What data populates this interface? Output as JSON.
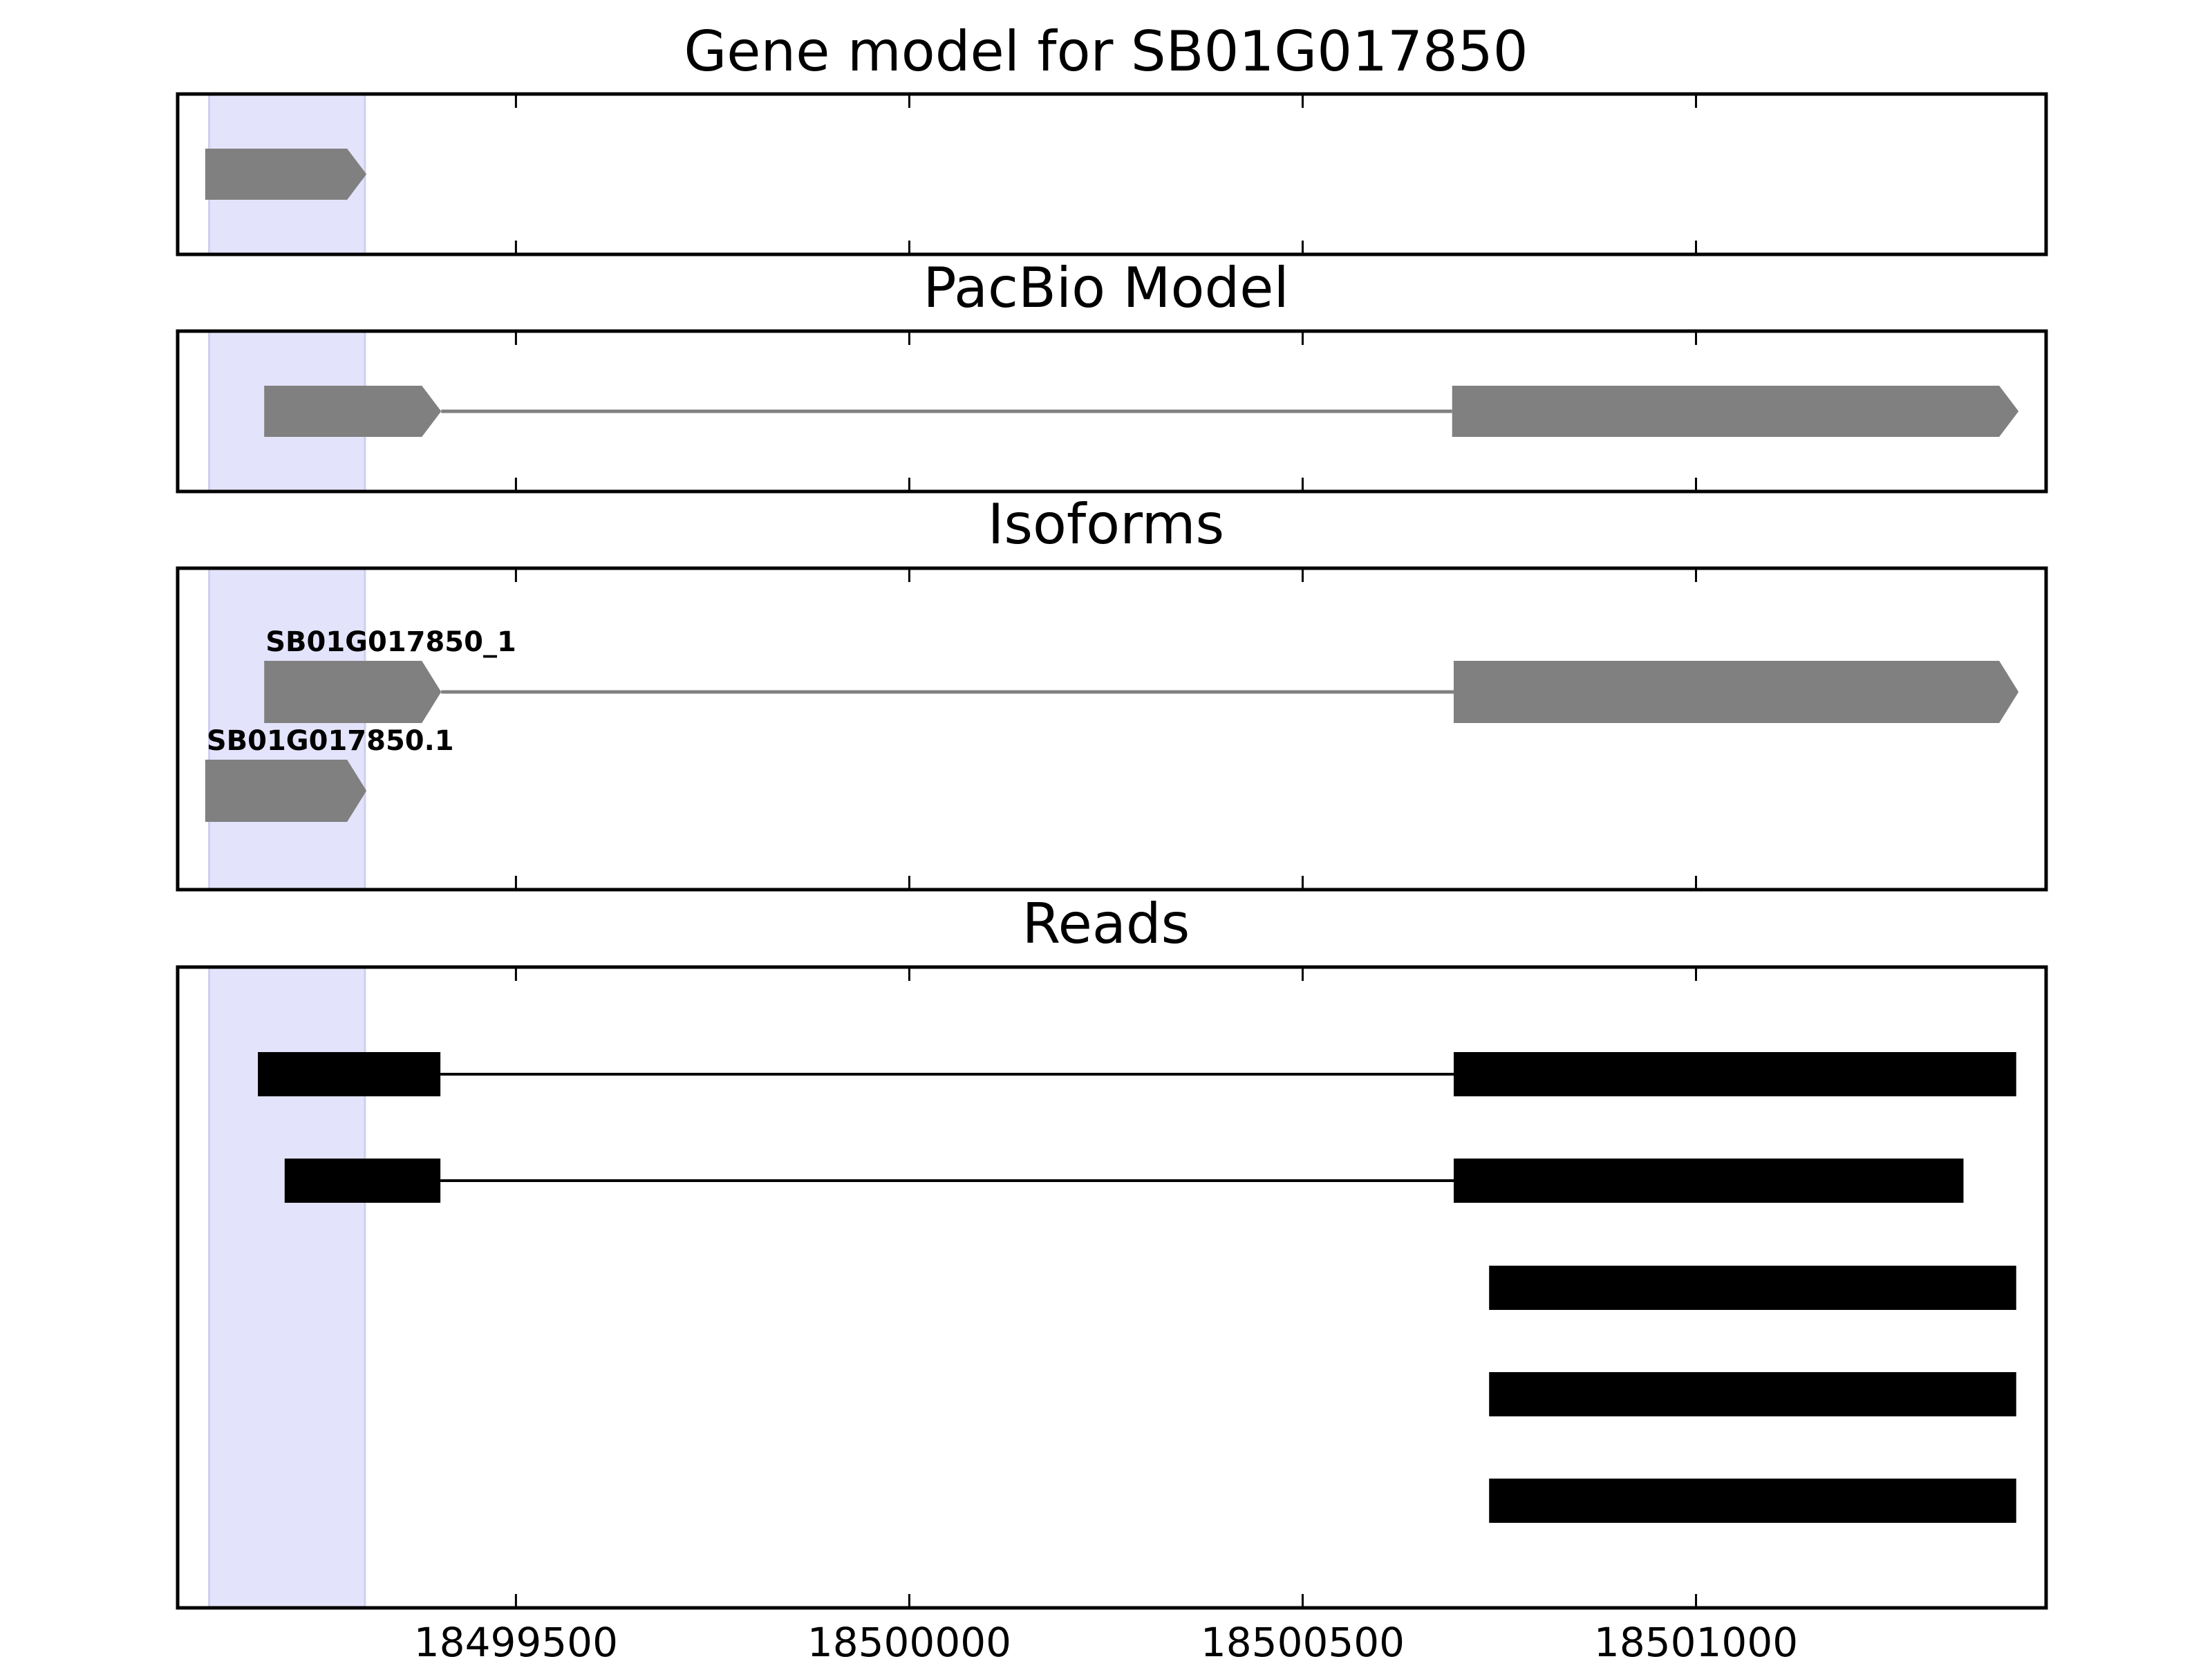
{
  "chart_data": {
    "type": "gene-track",
    "title": "Gene model for SB01G017850",
    "xlim": [
      18499070,
      18501445
    ],
    "x_ticks": [
      18499500,
      18500000,
      18500500,
      18501000
    ],
    "highlight_region": [
      18499110,
      18499308
    ],
    "colors": {
      "gene_feature": "#808080",
      "read": "#000000",
      "highlight": "#e3e3fb"
    },
    "panels": [
      {
        "title": "Gene model for SB01G017850",
        "models": [
          {
            "label": "",
            "row": 0,
            "exons": [
              [
                18499105,
                18499310
              ]
            ]
          }
        ]
      },
      {
        "title": "PacBio Model",
        "models": [
          {
            "label": "",
            "row": 0,
            "exons": [
              [
                18499180,
                18499405
              ],
              [
                18500690,
                18501410
              ]
            ]
          }
        ]
      },
      {
        "title": "Isoforms",
        "models": [
          {
            "label": "SB01G017850_1",
            "row": 0,
            "exons": [
              [
                18499180,
                18499405
              ],
              [
                18500692,
                18501410
              ]
            ]
          },
          {
            "label": "SB01G017850.1",
            "row": 1,
            "exons": [
              [
                18499105,
                18499310
              ]
            ]
          }
        ]
      },
      {
        "title": "Reads",
        "reads": [
          {
            "row": 0,
            "blocks": [
              [
                18499172,
                18499404
              ],
              [
                18500692,
                18501407
              ]
            ]
          },
          {
            "row": 1,
            "blocks": [
              [
                18499206,
                18499404
              ],
              [
                18500692,
                18501340
              ]
            ]
          },
          {
            "row": 2,
            "blocks": [
              [
                18500737,
                18501407
              ]
            ]
          },
          {
            "row": 3,
            "blocks": [
              [
                18500737,
                18501407
              ]
            ]
          },
          {
            "row": 4,
            "blocks": [
              [
                18500737,
                18501407
              ]
            ]
          }
        ]
      }
    ]
  }
}
